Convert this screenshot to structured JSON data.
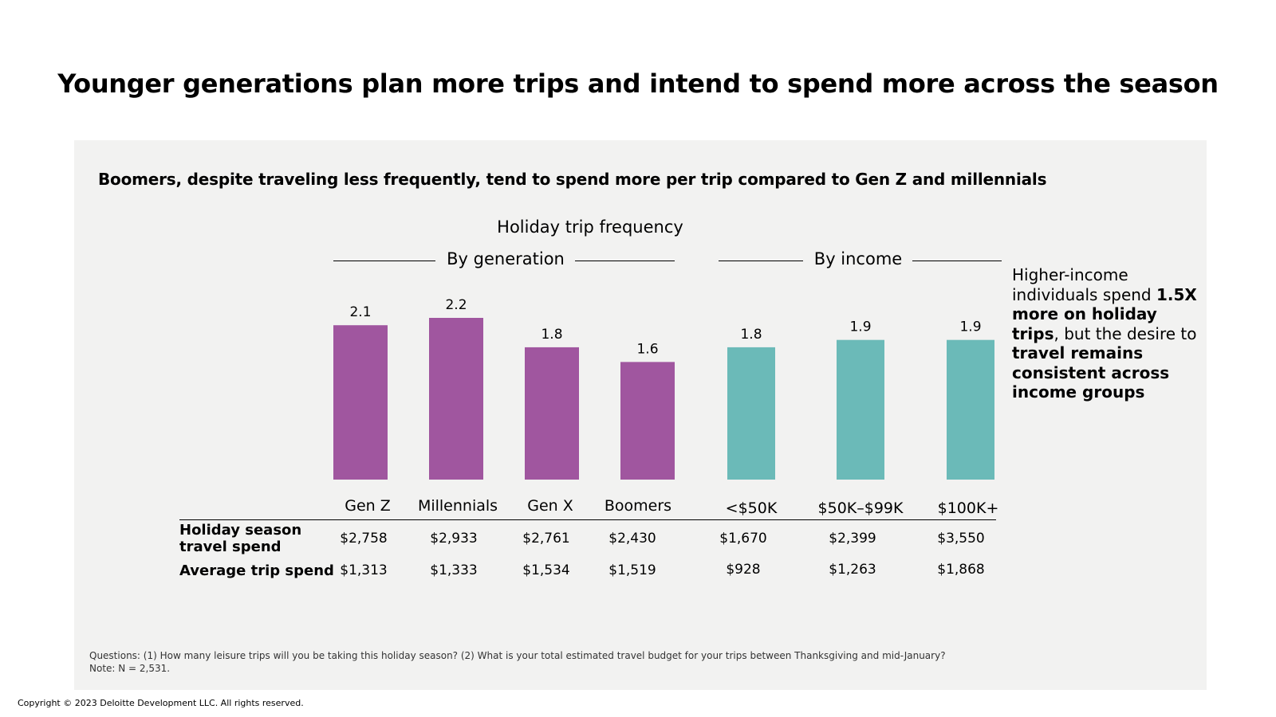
{
  "title": "Younger generations plan more trips and intend to spend more across the season",
  "subtitle": "Boomers, despite traveling less frequently, tend to spend more per trip compared to Gen Z and millennials",
  "callout": {
    "part1": "Higher-income individuals spend ",
    "bold1": "1.5X more on holiday trips",
    "part2": ", but the desire to ",
    "bold2": "travel remains consistent across income groups"
  },
  "table": {
    "row1_label": "Holiday season travel spend",
    "row2_label": "Average trip spend",
    "holiday_spend": [
      "$2,758",
      "$2,933",
      "$2,761",
      "$2,430",
      "$1,670",
      "$2,399",
      "$3,550"
    ],
    "avg_trip_spend": [
      "$1,313",
      "$1,333",
      "$1,534",
      "$1,519",
      "$928",
      "$1,263",
      "$1,868"
    ]
  },
  "footnote": {
    "questions": "Questions: (1) How many leisure trips will you be taking this holiday season? (2) What is your total estimated travel budget for your trips between Thanksgiving and mid-January?",
    "note": "Note: N = 2,531."
  },
  "copyright": "Copyright © 2023 Deloitte Development LLC. All rights reserved.",
  "chart_data": {
    "type": "bar",
    "title": "Holiday trip frequency",
    "groups": [
      {
        "name": "By generation",
        "color": "#a0569f",
        "categories": [
          "Gen Z",
          "Millennials",
          "Gen X",
          "Boomers"
        ],
        "values": [
          2.1,
          2.2,
          1.8,
          1.6
        ]
      },
      {
        "name": "By income",
        "color": "#6bbab8",
        "categories": [
          "<$50K",
          "$50K–$99K",
          "$100K+"
        ],
        "values": [
          1.8,
          1.9,
          1.9
        ]
      }
    ],
    "xlabel": "",
    "ylabel": "",
    "ylim": [
      0,
      2.2
    ],
    "grid": false
  }
}
